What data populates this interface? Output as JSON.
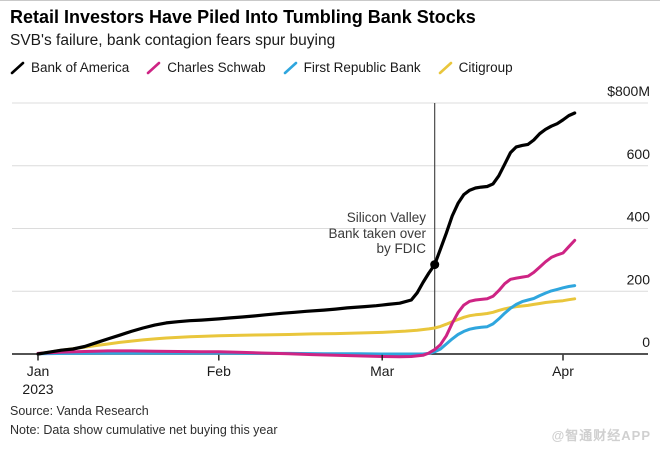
{
  "header": {
    "title": "Retail Investors Have Piled Into Tumbling Bank Stocks",
    "subtitle": "SVB's failure, bank contagion fears spur buying"
  },
  "footer": {
    "source": "Source: Vanda Research",
    "note": "Note: Data show cumulative net buying this year",
    "watermark": "@智通财经APP"
  },
  "chart_data": {
    "type": "line",
    "title": "Retail Investors Have Piled Into Tumbling Bank Stocks",
    "subtitle": "SVB's failure, bank contagion fears spur buying",
    "unit": "USD millions, cumulative net retail buying",
    "legend_position": "top",
    "x": {
      "range_days": [
        1,
        93
      ],
      "ticks": [
        {
          "day": 1,
          "label": "Jan",
          "sub_label": "2023"
        },
        {
          "day": 32,
          "label": "Feb"
        },
        {
          "day": 60,
          "label": "Mar"
        },
        {
          "day": 91,
          "label": "Apr"
        }
      ]
    },
    "y": {
      "ticks": [
        0,
        200,
        400,
        600,
        800
      ],
      "tick_labels": [
        "0",
        "200",
        "400",
        "600",
        "$800M"
      ],
      "range": [
        0,
        800
      ],
      "grid": true
    },
    "annotation": {
      "lines": [
        "Silicon Valley",
        "Bank taken over",
        "by FDIC"
      ],
      "day": 69,
      "marker_value": 285
    },
    "series": [
      {
        "name": "Bank of America",
        "color": "#000000",
        "points": [
          [
            1,
            0
          ],
          [
            3,
            6
          ],
          [
            5,
            12
          ],
          [
            7,
            16
          ],
          [
            9,
            24
          ],
          [
            11,
            36
          ],
          [
            13,
            48
          ],
          [
            15,
            60
          ],
          [
            17,
            72
          ],
          [
            19,
            83
          ],
          [
            21,
            92
          ],
          [
            23,
            99
          ],
          [
            25,
            103
          ],
          [
            27,
            106
          ],
          [
            29,
            108
          ],
          [
            32,
            112
          ],
          [
            34,
            115
          ],
          [
            36,
            118
          ],
          [
            38,
            121
          ],
          [
            40,
            125
          ],
          [
            43,
            130
          ],
          [
            45,
            133
          ],
          [
            47,
            136
          ],
          [
            50,
            140
          ],
          [
            52,
            143
          ],
          [
            54,
            147
          ],
          [
            57,
            151
          ],
          [
            59,
            154
          ],
          [
            61,
            158
          ],
          [
            63,
            162
          ],
          [
            65,
            172
          ],
          [
            66,
            195
          ],
          [
            67,
            228
          ],
          [
            68,
            258
          ],
          [
            69,
            285
          ],
          [
            70,
            335
          ],
          [
            71,
            385
          ],
          [
            72,
            440
          ],
          [
            73,
            480
          ],
          [
            74,
            508
          ],
          [
            75,
            522
          ],
          [
            76,
            529
          ],
          [
            77,
            532
          ],
          [
            78,
            534
          ],
          [
            79,
            542
          ],
          [
            80,
            568
          ],
          [
            81,
            605
          ],
          [
            82,
            642
          ],
          [
            83,
            660
          ],
          [
            84,
            665
          ],
          [
            85,
            668
          ],
          [
            86,
            682
          ],
          [
            87,
            702
          ],
          [
            88,
            716
          ],
          [
            89,
            726
          ],
          [
            90,
            734
          ],
          [
            91,
            746
          ],
          [
            92,
            760
          ],
          [
            93,
            768
          ]
        ]
      },
      {
        "name": "Charles Schwab",
        "color": "#ce2484",
        "points": [
          [
            1,
            2
          ],
          [
            5,
            6
          ],
          [
            9,
            8
          ],
          [
            13,
            10
          ],
          [
            17,
            10
          ],
          [
            21,
            9
          ],
          [
            25,
            8
          ],
          [
            29,
            7
          ],
          [
            32,
            7
          ],
          [
            36,
            5
          ],
          [
            40,
            3
          ],
          [
            44,
            1
          ],
          [
            48,
            -2
          ],
          [
            52,
            -4
          ],
          [
            56,
            -6
          ],
          [
            60,
            -8
          ],
          [
            63,
            -9
          ],
          [
            65,
            -8
          ],
          [
            67,
            -4
          ],
          [
            68,
            3
          ],
          [
            69,
            14
          ],
          [
            70,
            30
          ],
          [
            71,
            58
          ],
          [
            72,
            98
          ],
          [
            73,
            132
          ],
          [
            74,
            156
          ],
          [
            75,
            168
          ],
          [
            76,
            172
          ],
          [
            77,
            174
          ],
          [
            78,
            176
          ],
          [
            79,
            184
          ],
          [
            80,
            202
          ],
          [
            81,
            224
          ],
          [
            82,
            238
          ],
          [
            83,
            242
          ],
          [
            84,
            245
          ],
          [
            85,
            248
          ],
          [
            86,
            260
          ],
          [
            87,
            277
          ],
          [
            88,
            294
          ],
          [
            89,
            308
          ],
          [
            90,
            316
          ],
          [
            91,
            322
          ],
          [
            92,
            342
          ],
          [
            93,
            362
          ]
        ]
      },
      {
        "name": "First Republic Bank",
        "color": "#2fa6de",
        "points": [
          [
            1,
            1
          ],
          [
            6,
            2
          ],
          [
            11,
            3
          ],
          [
            16,
            3
          ],
          [
            21,
            3
          ],
          [
            26,
            3
          ],
          [
            32,
            3
          ],
          [
            38,
            2
          ],
          [
            44,
            2
          ],
          [
            50,
            1
          ],
          [
            56,
            1
          ],
          [
            60,
            0
          ],
          [
            64,
            0
          ],
          [
            67,
            0
          ],
          [
            68,
            2
          ],
          [
            69,
            7
          ],
          [
            70,
            16
          ],
          [
            71,
            32
          ],
          [
            72,
            48
          ],
          [
            73,
            62
          ],
          [
            74,
            72
          ],
          [
            75,
            79
          ],
          [
            76,
            83
          ],
          [
            77,
            85
          ],
          [
            78,
            87
          ],
          [
            79,
            96
          ],
          [
            80,
            112
          ],
          [
            81,
            130
          ],
          [
            82,
            146
          ],
          [
            83,
            158
          ],
          [
            84,
            167
          ],
          [
            85,
            172
          ],
          [
            86,
            177
          ],
          [
            87,
            186
          ],
          [
            88,
            194
          ],
          [
            89,
            201
          ],
          [
            90,
            206
          ],
          [
            91,
            211
          ],
          [
            92,
            215
          ],
          [
            93,
            218
          ]
        ]
      },
      {
        "name": "Citigroup",
        "color": "#e9c63c",
        "points": [
          [
            1,
            1
          ],
          [
            3,
            6
          ],
          [
            5,
            12
          ],
          [
            7,
            17
          ],
          [
            9,
            22
          ],
          [
            11,
            27
          ],
          [
            13,
            32
          ],
          [
            15,
            37
          ],
          [
            17,
            41
          ],
          [
            19,
            45
          ],
          [
            21,
            48
          ],
          [
            23,
            51
          ],
          [
            25,
            53
          ],
          [
            27,
            55
          ],
          [
            29,
            56
          ],
          [
            32,
            58
          ],
          [
            36,
            60
          ],
          [
            40,
            61
          ],
          [
            44,
            62
          ],
          [
            48,
            64
          ],
          [
            52,
            65
          ],
          [
            56,
            67
          ],
          [
            60,
            69
          ],
          [
            62,
            71
          ],
          [
            64,
            73
          ],
          [
            66,
            76
          ],
          [
            68,
            80
          ],
          [
            69,
            83
          ],
          [
            70,
            88
          ],
          [
            71,
            95
          ],
          [
            72,
            103
          ],
          [
            73,
            110
          ],
          [
            74,
            117
          ],
          [
            75,
            122
          ],
          [
            76,
            125
          ],
          [
            77,
            127
          ],
          [
            78,
            129
          ],
          [
            79,
            133
          ],
          [
            80,
            139
          ],
          [
            81,
            144
          ],
          [
            82,
            148
          ],
          [
            83,
            151
          ],
          [
            84,
            153
          ],
          [
            85,
            155
          ],
          [
            86,
            158
          ],
          [
            87,
            161
          ],
          [
            88,
            164
          ],
          [
            89,
            166
          ],
          [
            90,
            168
          ],
          [
            91,
            170
          ],
          [
            92,
            173
          ],
          [
            93,
            176
          ]
        ]
      }
    ]
  }
}
